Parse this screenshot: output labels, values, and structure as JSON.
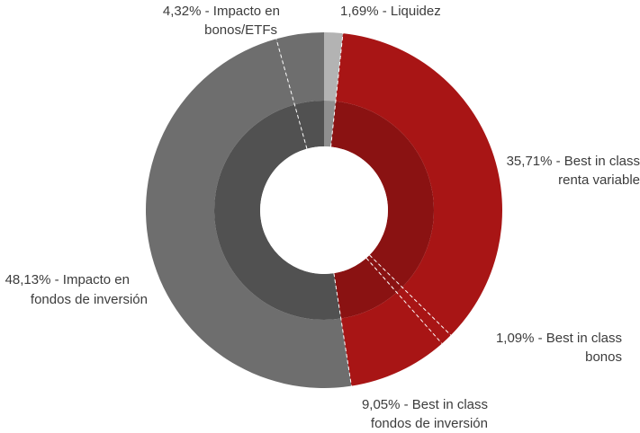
{
  "chart_data": {
    "type": "pie",
    "style": "double-ring donut",
    "categories": [
      "Liquidez",
      "Best in class renta variable",
      "Best in class bonos",
      "Best in class fondos de inversión",
      "Impacto en fondos de inversión",
      "Impacto en bonos/ETFs"
    ],
    "values": [
      1.69,
      35.71,
      1.09,
      9.05,
      48.13,
      4.32
    ],
    "labels": [
      {
        "line1": "1,69% - Liquidez",
        "line2": ""
      },
      {
        "line1": "35,71% - Best in class",
        "line2": "renta variable"
      },
      {
        "line1": "1,09% - Best in class",
        "line2": "bonos"
      },
      {
        "line1": "9,05% - Best in class",
        "line2": "fondos de inversión"
      },
      {
        "line1": "48,13% - Impacto en",
        "line2": "fondos de inversión"
      },
      {
        "line1": "4,32% - Impacto en",
        "line2": "bonos/ETFs"
      }
    ],
    "outer_ring_colors": [
      "#b3b3b3",
      "#a81515",
      "#a81515",
      "#a81515",
      "#6e6e6e",
      "#6e6e6e"
    ],
    "inner_ring_colors": [
      "#8f8f8f",
      "#8a1212",
      "#8a1212",
      "#8a1212",
      "#515151",
      "#515151"
    ],
    "legend": "none"
  }
}
